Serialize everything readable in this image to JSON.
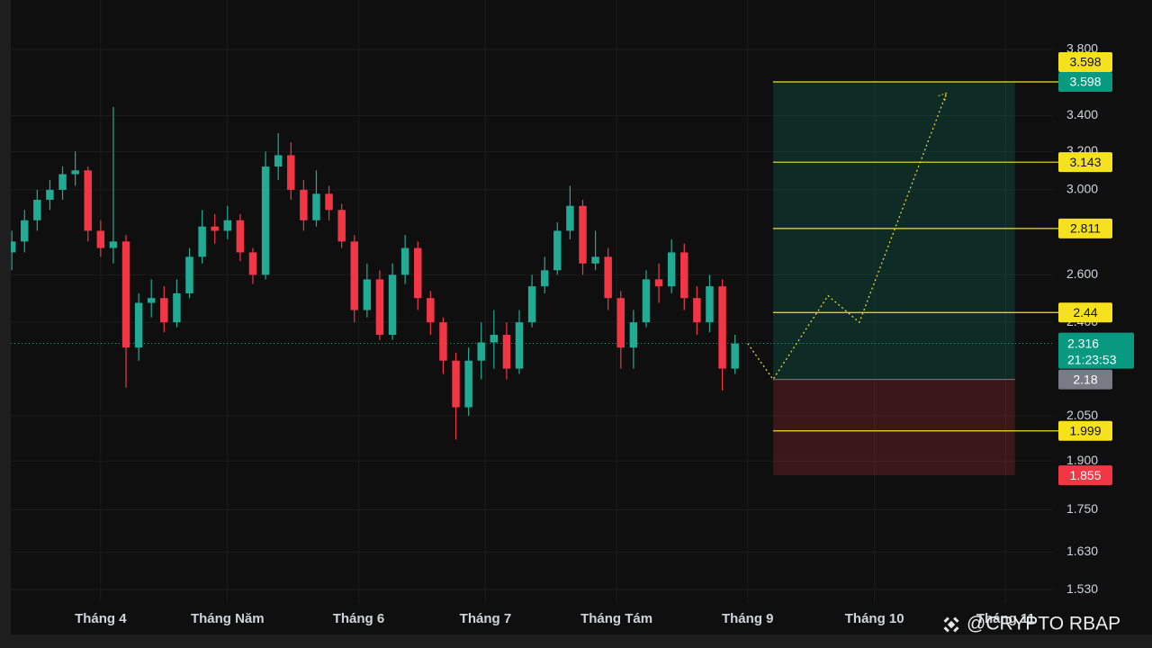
{
  "chart_data": {
    "type": "candlestick",
    "log_scale": true,
    "grid": true,
    "up_color": "#22ab94",
    "down_color": "#f23645",
    "xlim": [
      7.2,
      256.2
    ],
    "ylim": [
      1.496,
      4.13
    ],
    "xticks": [
      {
        "value": 31,
        "label": "Tháng 4"
      },
      {
        "value": 61,
        "label": "Tháng Năm"
      },
      {
        "value": 92,
        "label": "Tháng 6"
      },
      {
        "value": 122,
        "label": "Tháng 7"
      },
      {
        "value": 153,
        "label": "Tháng Tám"
      },
      {
        "value": 184,
        "label": "Tháng 9"
      },
      {
        "value": 214,
        "label": "Tháng 10"
      },
      {
        "value": 245,
        "label": "Tháng 11"
      }
    ],
    "yticks": [
      {
        "value": 3.8,
        "label": "3.800"
      },
      {
        "value": 3.4,
        "label": "3.400"
      },
      {
        "value": 3.2,
        "label": "3.200"
      },
      {
        "value": 3.0,
        "label": "3.000"
      },
      {
        "value": 2.6,
        "label": "2.600"
      },
      {
        "value": 2.4,
        "label": "2.400"
      },
      {
        "value": 2.05,
        "label": "2.050"
      },
      {
        "value": 1.9,
        "label": "1.900"
      },
      {
        "value": 1.75,
        "label": "1.750"
      },
      {
        "value": 1.63,
        "label": "1.630"
      },
      {
        "value": 1.53,
        "label": "1.530"
      }
    ],
    "x": [
      10,
      13,
      16,
      19,
      22,
      25,
      28,
      31,
      34,
      37,
      40,
      43,
      46,
      49,
      52,
      55,
      58,
      61,
      64,
      67,
      70,
      73,
      76,
      79,
      82,
      85,
      88,
      91,
      94,
      97,
      100,
      103,
      106,
      109,
      112,
      115,
      118,
      121,
      124,
      127,
      130,
      133,
      136,
      139,
      142,
      145,
      148,
      151,
      154,
      157,
      160,
      163,
      166,
      169,
      172,
      175,
      178,
      181
    ],
    "open": [
      2.7,
      2.75,
      2.85,
      2.95,
      3.0,
      3.08,
      3.1,
      2.8,
      2.72,
      2.75,
      2.3,
      2.48,
      2.5,
      2.4,
      2.52,
      2.68,
      2.82,
      2.8,
      2.85,
      2.7,
      2.6,
      3.12,
      3.18,
      3.0,
      2.85,
      2.98,
      2.9,
      2.75,
      2.45,
      2.58,
      2.35,
      2.6,
      2.72,
      2.5,
      2.4,
      2.25,
      2.08,
      2.25,
      2.32,
      2.35,
      2.22,
      2.4,
      2.55,
      2.62,
      2.8,
      2.92,
      2.65,
      2.68,
      2.5,
      2.3,
      2.4,
      2.58,
      2.55,
      2.7,
      2.5,
      2.4,
      2.55,
      2.22
    ],
    "high": [
      2.8,
      2.9,
      3.0,
      3.05,
      3.12,
      3.2,
      3.12,
      2.85,
      3.45,
      2.78,
      2.52,
      2.58,
      2.55,
      2.58,
      2.72,
      2.9,
      2.88,
      2.92,
      2.88,
      2.72,
      3.2,
      3.3,
      3.25,
      3.05,
      3.1,
      3.02,
      2.93,
      2.78,
      2.65,
      2.62,
      2.65,
      2.78,
      2.75,
      2.53,
      2.42,
      2.28,
      2.3,
      2.4,
      2.45,
      2.4,
      2.45,
      2.6,
      2.68,
      2.84,
      3.02,
      2.95,
      2.8,
      2.72,
      2.53,
      2.45,
      2.62,
      2.65,
      2.76,
      2.74,
      2.55,
      2.6,
      2.58,
      2.35
    ],
    "low": [
      2.62,
      2.7,
      2.8,
      2.9,
      2.95,
      3.02,
      2.75,
      2.68,
      2.65,
      2.15,
      2.25,
      2.42,
      2.36,
      2.38,
      2.5,
      2.65,
      2.74,
      2.76,
      2.66,
      2.56,
      2.58,
      3.05,
      2.95,
      2.8,
      2.82,
      2.85,
      2.72,
      2.4,
      2.42,
      2.33,
      2.33,
      2.56,
      2.45,
      2.35,
      2.2,
      1.97,
      2.05,
      2.18,
      2.22,
      2.18,
      2.2,
      2.38,
      2.52,
      2.6,
      2.76,
      2.6,
      2.62,
      2.45,
      2.22,
      2.22,
      2.38,
      2.48,
      2.52,
      2.45,
      2.35,
      2.36,
      2.14,
      2.2
    ],
    "close": [
      2.75,
      2.85,
      2.95,
      3.0,
      3.08,
      3.1,
      2.8,
      2.72,
      2.75,
      2.3,
      2.48,
      2.5,
      2.4,
      2.52,
      2.68,
      2.82,
      2.8,
      2.85,
      2.7,
      2.6,
      3.12,
      3.18,
      3.0,
      2.85,
      2.98,
      2.9,
      2.75,
      2.45,
      2.58,
      2.35,
      2.6,
      2.72,
      2.5,
      2.4,
      2.25,
      2.08,
      2.25,
      2.32,
      2.35,
      2.22,
      2.4,
      2.55,
      2.62,
      2.8,
      2.92,
      2.65,
      2.68,
      2.5,
      2.3,
      2.4,
      2.58,
      2.55,
      2.7,
      2.5,
      2.4,
      2.55,
      2.22,
      2.316
    ],
    "last_price": {
      "value": 2.316,
      "countdown": "21:23:53",
      "color": "#089981"
    },
    "position": {
      "x_start": 190,
      "x_end": 247.2,
      "entry": 2.18,
      "target": 3.598,
      "stop": 1.855,
      "entry_color": "#787b86",
      "target_color": "#089981",
      "stop_color": "#f23645"
    },
    "levels": [
      {
        "value": 3.598
      },
      {
        "value": 3.143
      },
      {
        "value": 2.811
      },
      {
        "value": 2.44
      },
      {
        "value": 1.999
      }
    ],
    "level_color": "#f5e11e",
    "projection": {
      "x": [
        184,
        190,
        203,
        210.4,
        231
      ],
      "y": [
        2.316,
        2.18,
        2.51,
        2.4,
        3.53
      ],
      "color": "#e6d52a"
    },
    "watermark": "@CRYPTO RBAP"
  }
}
